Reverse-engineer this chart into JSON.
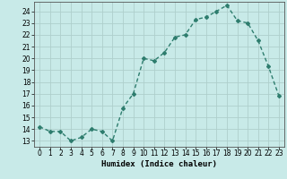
{
  "x": [
    0,
    1,
    2,
    3,
    4,
    5,
    6,
    7,
    8,
    9,
    10,
    11,
    12,
    13,
    14,
    15,
    16,
    17,
    18,
    19,
    20,
    21,
    22,
    23
  ],
  "y": [
    14.2,
    13.8,
    13.8,
    13.0,
    13.3,
    14.0,
    13.8,
    13.0,
    15.8,
    17.0,
    20.0,
    19.8,
    20.5,
    21.8,
    22.0,
    23.3,
    23.5,
    24.0,
    24.5,
    23.2,
    23.0,
    21.5,
    19.3,
    16.8
  ],
  "line_color": "#2E7D6E",
  "marker": "D",
  "marker_size": 2.0,
  "bg_color": "#C8EAE8",
  "grid_color": "#AECFCC",
  "xlabel": "Humidex (Indice chaleur)",
  "ylabel": "",
  "xlim": [
    -0.5,
    23.5
  ],
  "ylim": [
    12.5,
    24.8
  ],
  "yticks": [
    13,
    14,
    15,
    16,
    17,
    18,
    19,
    20,
    21,
    22,
    23,
    24
  ],
  "xticks": [
    0,
    1,
    2,
    3,
    4,
    5,
    6,
    7,
    8,
    9,
    10,
    11,
    12,
    13,
    14,
    15,
    16,
    17,
    18,
    19,
    20,
    21,
    22,
    23
  ],
  "xlabel_fontsize": 6.5,
  "tick_fontsize": 5.5,
  "line_width": 1.0,
  "spine_color": "#555555"
}
